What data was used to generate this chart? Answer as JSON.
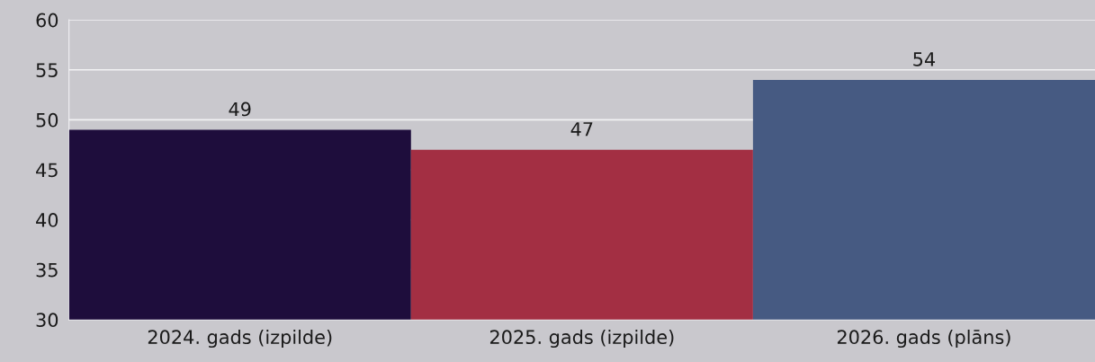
{
  "chart_data": {
    "type": "bar",
    "categories": [
      "2024. gads (izpilde)",
      "2025. gads (izpilde)",
      "2026. gads (plāns)"
    ],
    "values": [
      49,
      47,
      54
    ],
    "colors": [
      "#1e0d3c",
      "#a32f43",
      "#465a82"
    ],
    "ylim": [
      30,
      60
    ],
    "yticks": [
      30,
      35,
      40,
      45,
      50,
      55,
      60
    ],
    "grid": "y",
    "data_labels": true
  }
}
